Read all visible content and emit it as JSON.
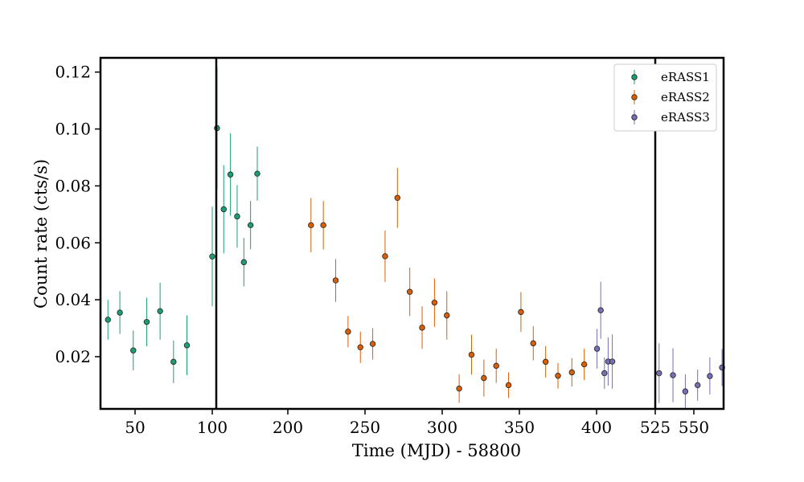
{
  "chart_data": {
    "type": "scatter",
    "xlabel": "Time (MJD) - 58800",
    "ylabel": "Count rate (cts/s)",
    "x_ticks": [
      "50",
      "100",
      "200",
      "250",
      "300",
      "350",
      "400",
      "525",
      "550"
    ],
    "y_ticks": [
      "0.02",
      "0.04",
      "0.06",
      "0.08",
      "0.10",
      "0.12"
    ],
    "ylim": [
      0.0,
      0.125
    ],
    "legend_position": "top-right",
    "axis_breaks_at": [
      "100",
      "525"
    ],
    "series": [
      {
        "name": "eRASS1",
        "color": "#1b9e77",
        "points": [
          {
            "x": 30,
            "y": 0.033,
            "err": 0.007
          },
          {
            "x": 38,
            "y": 0.0355,
            "err": 0.0075
          },
          {
            "x": 47,
            "y": 0.0222,
            "err": 0.007
          },
          {
            "x": 56,
            "y": 0.0322,
            "err": 0.0085
          },
          {
            "x": 65,
            "y": 0.036,
            "err": 0.01
          },
          {
            "x": 74,
            "y": 0.0182,
            "err": 0.0075
          },
          {
            "x": 83,
            "y": 0.024,
            "err": 0.0105
          },
          {
            "x": 100,
            "y": 0.0552,
            "err": 0.0175
          },
          {
            "x": 105,
            "y": 0.1003,
            "err": 0.0215
          },
          {
            "x": 114,
            "y": 0.0718,
            "err": 0.0155
          },
          {
            "x": 123,
            "y": 0.084,
            "err": 0.0145
          },
          {
            "x": 132,
            "y": 0.0693,
            "err": 0.011
          },
          {
            "x": 141,
            "y": 0.0532,
            "err": 0.0085
          },
          {
            "x": 150,
            "y": 0.0662,
            "err": 0.0085
          },
          {
            "x": 159,
            "y": 0.0843,
            "err": 0.0095
          }
        ]
      },
      {
        "name": "eRASS2",
        "color": "#d95f02",
        "points": [
          {
            "x": 215,
            "y": 0.0662,
            "err": 0.0095
          },
          {
            "x": 223,
            "y": 0.0662,
            "err": 0.0085
          },
          {
            "x": 231,
            "y": 0.0468,
            "err": 0.0075
          },
          {
            "x": 239,
            "y": 0.0288,
            "err": 0.0055
          },
          {
            "x": 247,
            "y": 0.0233,
            "err": 0.0055
          },
          {
            "x": 255,
            "y": 0.0245,
            "err": 0.0055
          },
          {
            "x": 263,
            "y": 0.0553,
            "err": 0.009
          },
          {
            "x": 271,
            "y": 0.0758,
            "err": 0.0105
          },
          {
            "x": 279,
            "y": 0.0428,
            "err": 0.0085
          },
          {
            "x": 287,
            "y": 0.0302,
            "err": 0.0075
          },
          {
            "x": 295,
            "y": 0.039,
            "err": 0.0085
          },
          {
            "x": 303,
            "y": 0.0345,
            "err": 0.0085
          },
          {
            "x": 311,
            "y": 0.0088,
            "err": 0.005
          },
          {
            "x": 319,
            "y": 0.0207,
            "err": 0.007
          },
          {
            "x": 327,
            "y": 0.0125,
            "err": 0.0065
          },
          {
            "x": 335,
            "y": 0.0168,
            "err": 0.006
          },
          {
            "x": 343,
            "y": 0.01,
            "err": 0.0045
          },
          {
            "x": 351,
            "y": 0.0357,
            "err": 0.007
          },
          {
            "x": 359,
            "y": 0.0247,
            "err": 0.006
          },
          {
            "x": 367,
            "y": 0.0182,
            "err": 0.0055
          },
          {
            "x": 375,
            "y": 0.0133,
            "err": 0.0045
          },
          {
            "x": 384,
            "y": 0.0145,
            "err": 0.005
          },
          {
            "x": 392,
            "y": 0.0173,
            "err": 0.0055
          }
        ]
      },
      {
        "name": "eRASS3",
        "color": "#7570b3",
        "points": [
          {
            "x": 401,
            "y": 0.0228,
            "err": 0.007
          },
          {
            "x": 409,
            "y": 0.0363,
            "err": 0.01
          },
          {
            "x": 417,
            "y": 0.0142,
            "err": 0.0055
          },
          {
            "x": 425,
            "y": 0.0183,
            "err": 0.0085
          },
          {
            "x": 434,
            "y": 0.0183,
            "err": 0.0095
          },
          {
            "x": 528,
            "y": 0.0142,
            "err": 0.0105
          },
          {
            "x": 537,
            "y": 0.0135,
            "err": 0.0095
          },
          {
            "x": 545,
            "y": 0.0078,
            "err": 0.006
          },
          {
            "x": 553,
            "y": 0.01,
            "err": 0.0055
          },
          {
            "x": 561,
            "y": 0.0132,
            "err": 0.0065
          },
          {
            "x": 569,
            "y": 0.0162,
            "err": 0.0065
          }
        ]
      }
    ]
  }
}
